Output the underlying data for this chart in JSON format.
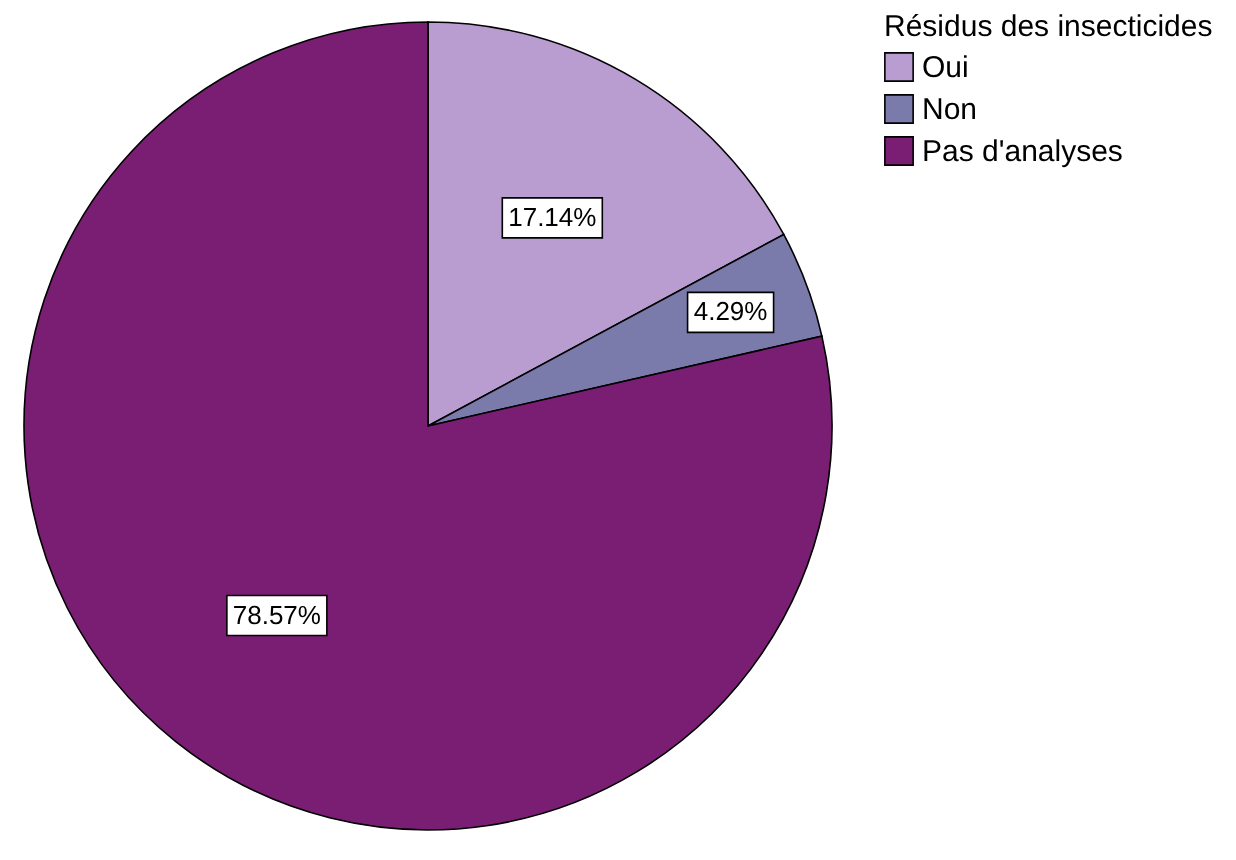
{
  "chart_data": {
    "type": "pie",
    "legend_title": "Résidus des insecticides",
    "categories": [
      "Oui",
      "Non",
      "Pas d'analyses"
    ],
    "values": [
      17.14,
      4.29,
      78.57
    ],
    "colors": [
      "#b99cd0",
      "#7b7bab",
      "#7a1e74"
    ],
    "value_labels": [
      "17.14%",
      "4.29%",
      "78.57%"
    ],
    "legend": "top right"
  }
}
